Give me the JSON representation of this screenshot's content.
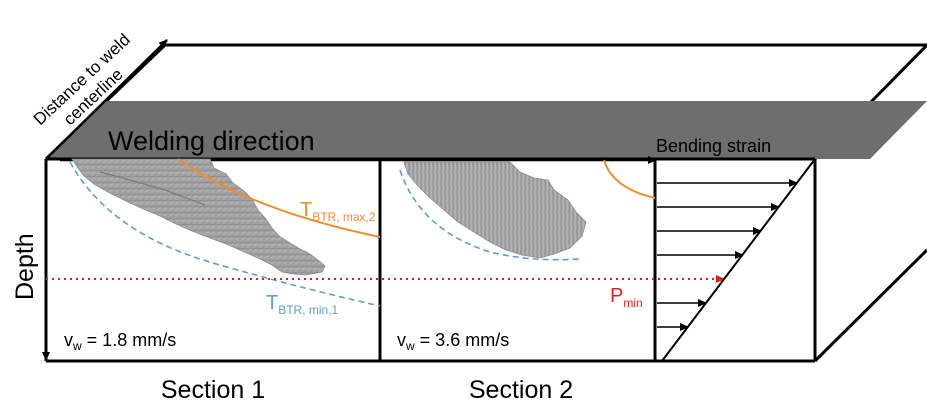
{
  "axes": {
    "distance_label_line1": "Distance to weld",
    "distance_label_line2": "centerline",
    "depth_label": "Depth"
  },
  "top_surface": {
    "direction_label": "Welding direction",
    "bending_label": "Bending strain"
  },
  "section1": {
    "title": "Section 1",
    "speed_main": "v",
    "speed_sub": "w",
    "speed_value": " = 1.8 mm/s",
    "tmax_main": "T",
    "tmax_sub": "BTR, max,2",
    "tmin_main": "T",
    "tmin_sub": "BTR, min,1"
  },
  "section2": {
    "title": "Section 2",
    "speed_main": "v",
    "speed_sub": "w",
    "speed_value": " = 3.6 mm/s"
  },
  "pmin": {
    "main": "P",
    "sub": "min"
  },
  "colors": {
    "top_surface": "#6e6e6e",
    "tmax_curve": "#f08c32",
    "tmin_curve": "#5aa0d2",
    "pmin_line": "#e01e1e",
    "outline": "#000000",
    "crack": "#9a9a9a"
  }
}
